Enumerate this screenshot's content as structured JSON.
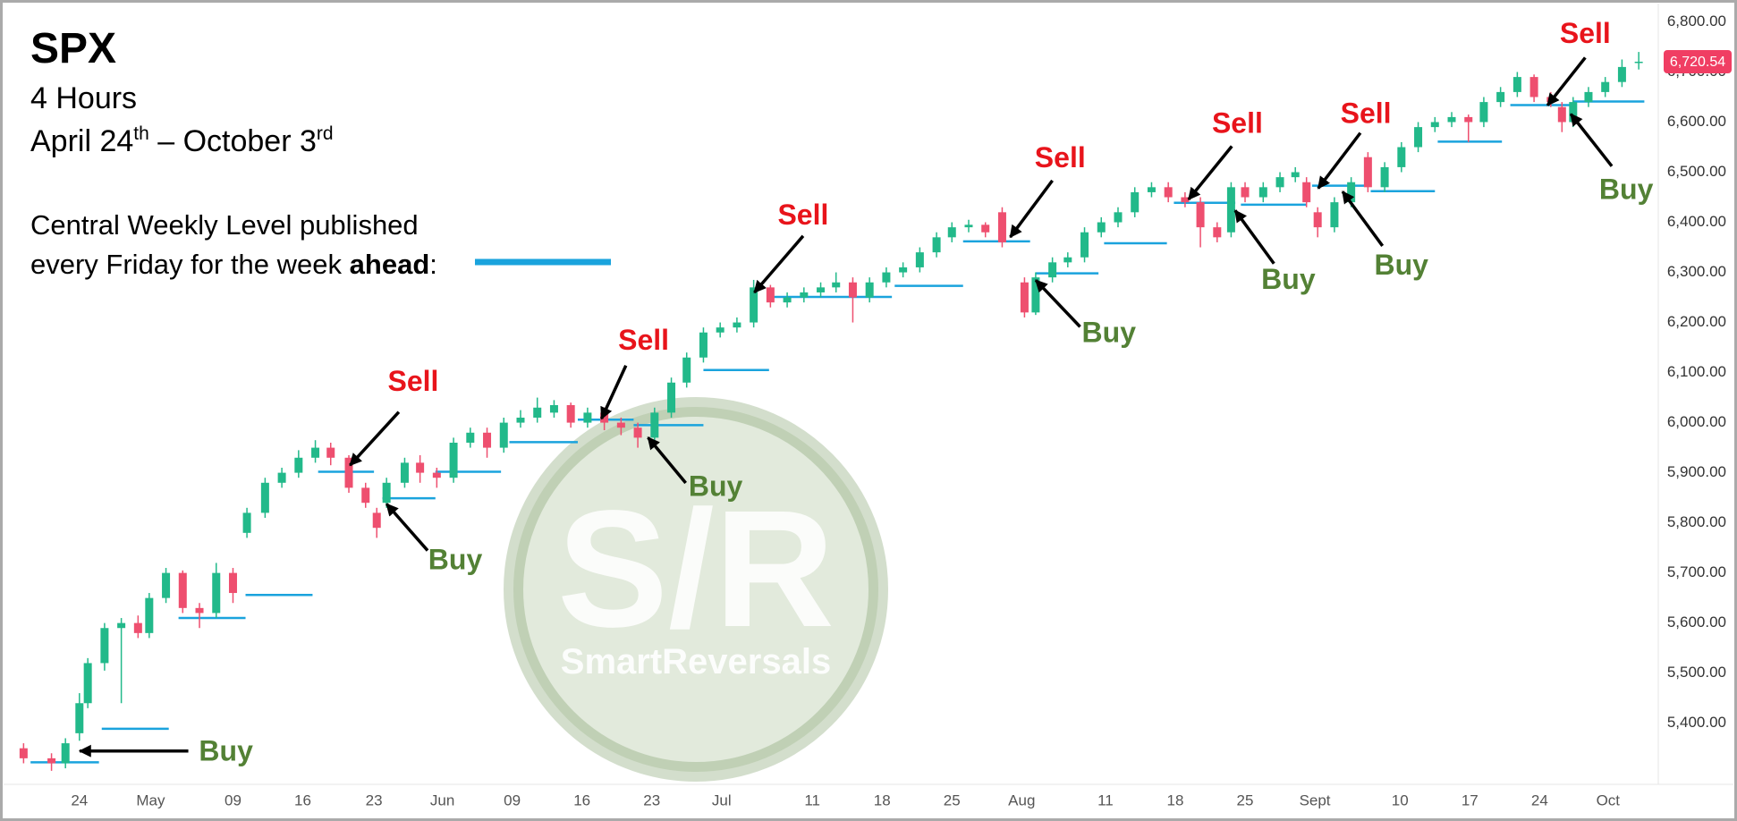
{
  "chart_data": {
    "type": "candlestick",
    "title": "SPX",
    "subtitle": "4 Hours",
    "date_range": {
      "start": "April 24",
      "start_suffix": "th",
      "separator": " – October 3",
      "end_suffix": "rd"
    },
    "note": {
      "line1": "Central Weekly Level published",
      "line2": "every Friday for the week",
      "bold": "ahead",
      "end": ":"
    },
    "watermark": {
      "mark": "S/R",
      "name": "SmartReversals"
    },
    "up_color": "#22b98a",
    "down_color": "#ee4f6f",
    "x": [
      -4,
      -2,
      -1,
      0,
      0.6,
      1.8,
      3,
      4.2,
      5,
      6.2,
      7.4,
      8.6,
      9.8,
      11,
      12,
      13.3,
      14.5,
      15.7,
      16.9,
      18,
      19.3,
      20.5,
      21.3,
      22,
      23.3,
      24.4,
      25.6,
      26.8,
      28,
      29.2,
      30.4,
      31.6,
      32.8,
      34,
      35.2,
      36.4,
      37.6,
      38.8,
      40,
      41.2,
      42.4,
      43.5,
      44.7,
      45.9,
      47.1,
      48.3,
      49.5,
      50.7,
      51.9,
      53.1,
      54.2,
      55.4,
      56.6,
      57.8,
      59,
      60.2,
      61.4,
      62.5,
      63.7,
      64.9,
      66.1,
      67.7,
      68.5,
      69.7,
      70.8,
      72,
      73.2,
      74.4,
      75.6,
      76.8,
      78,
      79.2,
      80.3,
      81.5,
      82.5,
      83.5,
      84.8,
      86,
      87.1,
      87.9,
      88.7,
      89.9,
      91.1,
      92.3,
      93.5,
      94.7,
      95.9,
      97.1,
      98.3,
      99.5,
      100.6,
      101.8,
      103,
      104.2,
      105.4,
      106.2,
      107,
      108.1,
      109.3,
      110.5,
      111.7
    ],
    "open": [
      5350,
      5330,
      5320,
      5380,
      5440,
      5520,
      5590,
      5600,
      5580,
      5650,
      5700,
      5630,
      5620,
      5700,
      5780,
      5820,
      5880,
      5900,
      5930,
      5950,
      5930,
      5870,
      5820,
      5840,
      5880,
      5920,
      5900,
      5890,
      5960,
      5980,
      5950,
      6000,
      6010,
      6020,
      6035,
      6000,
      6020,
      6000,
      5990,
      5970,
      6020,
      6080,
      6130,
      6180,
      6190,
      6200,
      6270,
      6240,
      6250,
      6260,
      6270,
      6280,
      6250,
      6280,
      6300,
      6310,
      6340,
      6370,
      6390,
      6395,
      6420,
      6280,
      6220,
      6290,
      6320,
      6330,
      6380,
      6400,
      6420,
      6460,
      6470,
      6450,
      6440,
      6390,
      6380,
      6470,
      6450,
      6470,
      6490,
      6480,
      6420,
      6390,
      6440,
      6530,
      6470,
      6510,
      6550,
      6590,
      6600,
      6610,
      6600,
      6640,
      6660,
      6690,
      6650,
      6630,
      6600,
      6640,
      6660,
      6680,
      6720
    ],
    "high": [
      5360,
      5340,
      5370,
      5460,
      5530,
      5600,
      5610,
      5615,
      5660,
      5710,
      5705,
      5640,
      5720,
      5710,
      5830,
      5890,
      5910,
      5945,
      5965,
      5960,
      5935,
      5880,
      5830,
      5890,
      5930,
      5935,
      5910,
      5970,
      5990,
      5990,
      6010,
      6025,
      6050,
      6045,
      6040,
      6030,
      6030,
      6010,
      6000,
      6030,
      6090,
      6140,
      6190,
      6200,
      6210,
      6285,
      6275,
      6260,
      6270,
      6280,
      6300,
      6290,
      6290,
      6310,
      6320,
      6350,
      6380,
      6400,
      6405,
      6400,
      6430,
      6290,
      6300,
      6330,
      6340,
      6390,
      6410,
      6430,
      6470,
      6480,
      6480,
      6460,
      6450,
      6400,
      6480,
      6480,
      6480,
      6500,
      6510,
      6490,
      6430,
      6450,
      6490,
      6540,
      6520,
      6560,
      6600,
      6610,
      6620,
      6615,
      6650,
      6670,
      6700,
      6695,
      6660,
      6640,
      6650,
      6670,
      6690,
      6725,
      6740
    ],
    "low": [
      5320,
      5305,
      5310,
      5365,
      5430,
      5505,
      5440,
      5570,
      5570,
      5640,
      5620,
      5590,
      5610,
      5640,
      5770,
      5810,
      5870,
      5890,
      5920,
      5915,
      5860,
      5830,
      5770,
      5830,
      5870,
      5880,
      5870,
      5880,
      5950,
      5930,
      5940,
      5990,
      6000,
      6010,
      5990,
      5990,
      5985,
      5975,
      5950,
      5960,
      6010,
      6070,
      6120,
      6170,
      6180,
      6190,
      6230,
      6230,
      6240,
      6250,
      6260,
      6200,
      6240,
      6270,
      6290,
      6300,
      6330,
      6360,
      6380,
      6370,
      6350,
      6210,
      6215,
      6280,
      6310,
      6320,
      6370,
      6390,
      6410,
      6450,
      6440,
      6430,
      6350,
      6360,
      6370,
      6440,
      6440,
      6460,
      6480,
      6430,
      6370,
      6380,
      6430,
      6460,
      6460,
      6500,
      6540,
      6580,
      6590,
      6560,
      6590,
      6630,
      6650,
      6640,
      6630,
      6580,
      6590,
      6630,
      6650,
      6670,
      6705
    ],
    "close": [
      5330,
      5320,
      5360,
      5440,
      5520,
      5590,
      5600,
      5580,
      5650,
      5700,
      5630,
      5620,
      5700,
      5660,
      5820,
      5880,
      5900,
      5930,
      5950,
      5930,
      5870,
      5840,
      5790,
      5880,
      5920,
      5900,
      5890,
      5960,
      5980,
      5950,
      6000,
      6010,
      6030,
      6035,
      6000,
      6020,
      6000,
      5990,
      5970,
      6020,
      6080,
      6130,
      6180,
      6190,
      6200,
      6270,
      6240,
      6250,
      6260,
      6270,
      6280,
      6250,
      6280,
      6300,
      6310,
      6340,
      6370,
      6390,
      6395,
      6380,
      6360,
      6220,
      6290,
      6320,
      6330,
      6380,
      6400,
      6420,
      6460,
      6470,
      6450,
      6440,
      6390,
      6370,
      6470,
      6450,
      6470,
      6490,
      6500,
      6440,
      6390,
      6440,
      6480,
      6470,
      6510,
      6550,
      6590,
      6600,
      6610,
      6600,
      6640,
      6660,
      6690,
      6650,
      6640,
      6600,
      6640,
      6660,
      6680,
      6710,
      6720.54
    ],
    "levels": {
      "color": "#1aa3dd",
      "start": [
        -3.5,
        1.6,
        7.1,
        11.9,
        17.1,
        21.7,
        25.5,
        30.8,
        35.7,
        39.7,
        44.7,
        49.4,
        58.4,
        63.3,
        68.5,
        73.4,
        78.4,
        83.2,
        88.3,
        92.5,
        97.3,
        102.5,
        107
      ],
      "end": [
        1.4,
        6.4,
        11.9,
        16.7,
        21.1,
        25.5,
        30.2,
        35.7,
        39.7,
        44.7,
        49.4,
        58.2,
        63.3,
        68.1,
        73,
        77.9,
        82.8,
        87.9,
        92.5,
        97.1,
        101.9,
        107,
        112.1
      ],
      "values": [
        5322,
        5389,
        5610,
        5656,
        5902,
        5849,
        5902,
        5961,
        6006,
        5995,
        6105,
        6251,
        6273,
        6362,
        6298,
        6358,
        6439,
        6435,
        6473,
        6462,
        6561,
        6634,
        6641
      ]
    },
    "last_price": {
      "value": 6720.54,
      "label": "6,720.54",
      "color": "#f03e63"
    },
    "annotations": [
      "Buy",
      "Sell",
      "Buy",
      "Sell",
      "Buy",
      "Sell",
      "Sell",
      "Buy",
      "Sell",
      "Buy",
      "Sell",
      "Buy",
      "Sell",
      "Buy"
    ],
    "annotation_colors": {
      "Sell": "#e8141b",
      "Buy": "#538135"
    },
    "xlim": [
      -4.6,
      113.1
    ],
    "xticks": [
      {
        "value": 0,
        "label": "24"
      },
      {
        "value": 5.1,
        "label": "May"
      },
      {
        "value": 11,
        "label": "09"
      },
      {
        "value": 16,
        "label": "16"
      },
      {
        "value": 21.1,
        "label": "23"
      },
      {
        "value": 26,
        "label": "Jun"
      },
      {
        "value": 31,
        "label": "09"
      },
      {
        "value": 36,
        "label": "16"
      },
      {
        "value": 41,
        "label": "23"
      },
      {
        "value": 46,
        "label": "Jul"
      },
      {
        "value": 52.5,
        "label": "11"
      },
      {
        "value": 57.5,
        "label": "18"
      },
      {
        "value": 62.5,
        "label": "25"
      },
      {
        "value": 67.5,
        "label": "Aug"
      },
      {
        "value": 73.5,
        "label": "11"
      },
      {
        "value": 78.5,
        "label": "18"
      },
      {
        "value": 83.5,
        "label": "25"
      },
      {
        "value": 88.5,
        "label": "Sept"
      },
      {
        "value": 94.6,
        "label": "10"
      },
      {
        "value": 99.6,
        "label": "17"
      },
      {
        "value": 104.6,
        "label": "24"
      },
      {
        "value": 109.5,
        "label": "Oct"
      }
    ],
    "ylim": [
      5278,
      6833
    ],
    "yticks": [
      {
        "value": 5400,
        "label": "5,400.00"
      },
      {
        "value": 5500,
        "label": "5,500.00"
      },
      {
        "value": 5600,
        "label": "5,600.00"
      },
      {
        "value": 5700,
        "label": "5,700.00"
      },
      {
        "value": 5800,
        "label": "5,800.00"
      },
      {
        "value": 5900,
        "label": "5,900.00"
      },
      {
        "value": 6000,
        "label": "6,000.00"
      },
      {
        "value": 6100,
        "label": "6,100.00"
      },
      {
        "value": 6200,
        "label": "6,200.00"
      },
      {
        "value": 6300,
        "label": "6,300.00"
      },
      {
        "value": 6400,
        "label": "6,400.00"
      },
      {
        "value": 6500,
        "label": "6,500.00"
      },
      {
        "value": 6600,
        "label": "6,600.00"
      },
      {
        "value": 6700,
        "label": "6,700.00"
      },
      {
        "value": 6800,
        "label": "6,800.00"
      }
    ]
  }
}
